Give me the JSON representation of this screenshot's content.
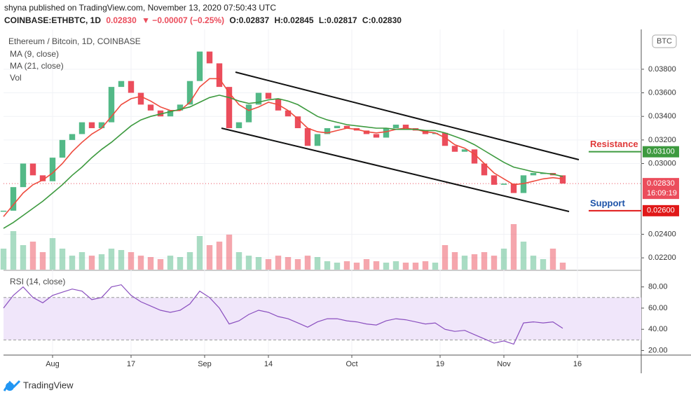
{
  "chart_data": {
    "type": "candlestick",
    "header": "shyna published on TradingView.com, November 13, 2020 07:50:43 UTC",
    "ticker": {
      "symbol": "COINBASE:ETHBTC, 1D",
      "last": "0.02830",
      "change": "▼ −0.00007 (−0.25%)",
      "open": "O:0.02837",
      "high": "H:0.02845",
      "low": "L:0.02817",
      "close": "C:0.02830"
    },
    "currency": "BTC",
    "brand": "TradingView",
    "x": [
      "2020-07-22",
      "2020-07-24",
      "2020-07-26",
      "2020-07-28",
      "2020-07-30",
      "2020-08-01",
      "2020-08-03",
      "2020-08-05",
      "2020-08-07",
      "2020-08-09",
      "2020-08-11",
      "2020-08-13",
      "2020-08-15",
      "2020-08-17",
      "2020-08-19",
      "2020-08-21",
      "2020-08-23",
      "2020-08-25",
      "2020-08-27",
      "2020-08-29",
      "2020-08-31",
      "2020-09-02",
      "2020-09-04",
      "2020-09-06",
      "2020-09-08",
      "2020-09-10",
      "2020-09-12",
      "2020-09-14",
      "2020-09-16",
      "2020-09-18",
      "2020-09-20",
      "2020-09-22",
      "2020-09-24",
      "2020-09-26",
      "2020-09-28",
      "2020-09-30",
      "2020-10-02",
      "2020-10-04",
      "2020-10-06",
      "2020-10-08",
      "2020-10-10",
      "2020-10-12",
      "2020-10-14",
      "2020-10-16",
      "2020-10-18",
      "2020-10-20",
      "2020-10-22",
      "2020-10-24",
      "2020-10-26",
      "2020-10-28",
      "2020-10-30",
      "2020-11-01",
      "2020-11-03",
      "2020-11-05",
      "2020-11-07",
      "2020-11-09",
      "2020-11-11",
      "2020-11-13"
    ],
    "xlim": [
      "2020-07-22",
      "2020-11-29"
    ],
    "xticks": [
      {
        "value": "2020-08-01",
        "label": "Aug"
      },
      {
        "value": "2020-08-17",
        "label": "17"
      },
      {
        "value": "2020-09-01",
        "label": "Sep"
      },
      {
        "value": "2020-09-14",
        "label": "14"
      },
      {
        "value": "2020-10-01",
        "label": "Oct"
      },
      {
        "value": "2020-10-19",
        "label": "19"
      },
      {
        "value": "2020-11-01",
        "label": "Nov"
      },
      {
        "value": "2020-11-16",
        "label": "16"
      }
    ],
    "ylim": [
      0.021,
      0.0412
    ],
    "yticks": [
      {
        "value": 0.038,
        "label": "0.03800"
      },
      {
        "value": 0.036,
        "label": "0.03600"
      },
      {
        "value": 0.034,
        "label": "0.03400"
      },
      {
        "value": 0.032,
        "label": "0.03200"
      },
      {
        "value": 0.03,
        "label": "0.03000"
      },
      {
        "value": 0.024,
        "label": "0.02400"
      },
      {
        "value": 0.022,
        "label": "0.02200"
      }
    ],
    "up_color": "#53b987",
    "down_color": "#eb4d5c",
    "series": [
      {
        "name": "Ethereum / Bitcoin, 1D, COINBASE",
        "values": [
          0.026,
          0.028,
          0.03,
          0.029,
          0.0285,
          0.0305,
          0.032,
          0.0325,
          0.0335,
          0.033,
          0.0335,
          0.0365,
          0.037,
          0.036,
          0.035,
          0.0345,
          0.034,
          0.0345,
          0.035,
          0.037,
          0.0395,
          0.0385,
          0.0365,
          0.033,
          0.0335,
          0.035,
          0.036,
          0.0355,
          0.0345,
          0.034,
          0.033,
          0.0315,
          0.0325,
          0.033,
          0.0332,
          0.033,
          0.0328,
          0.0325,
          0.0322,
          0.033,
          0.0333,
          0.033,
          0.0328,
          0.0325,
          0.0326,
          0.0315,
          0.031,
          0.0312,
          0.03,
          0.029,
          0.0282,
          0.0283,
          0.0275,
          0.029,
          0.0292,
          0.0292,
          0.029,
          0.0283
        ]
      },
      {
        "name": "MA (9, close)",
        "color": "#ee4b3e",
        "values": [
          0.0255,
          0.0265,
          0.0275,
          0.0282,
          0.0286,
          0.0292,
          0.03,
          0.031,
          0.0318,
          0.0325,
          0.033,
          0.034,
          0.035,
          0.0355,
          0.0357,
          0.0353,
          0.0348,
          0.0345,
          0.0345,
          0.0352,
          0.0365,
          0.0372,
          0.0372,
          0.036,
          0.035,
          0.0345,
          0.0348,
          0.0352,
          0.035,
          0.0345,
          0.0338,
          0.033,
          0.0327,
          0.0326,
          0.0328,
          0.033,
          0.0329,
          0.0327,
          0.0326,
          0.0327,
          0.0329,
          0.033,
          0.0329,
          0.0327,
          0.0326,
          0.0322,
          0.0316,
          0.0313,
          0.0308,
          0.03,
          0.0292,
          0.0287,
          0.0282,
          0.0283,
          0.0285,
          0.0287,
          0.0288,
          0.0287
        ]
      },
      {
        "name": "MA (21, close)",
        "color": "#3d9a3f",
        "values": [
          0.0245,
          0.025,
          0.0256,
          0.0262,
          0.0268,
          0.0275,
          0.0282,
          0.029,
          0.0297,
          0.0305,
          0.0312,
          0.0318,
          0.0325,
          0.0332,
          0.0337,
          0.034,
          0.0342,
          0.0344,
          0.0346,
          0.0348,
          0.0352,
          0.0356,
          0.0358,
          0.0356,
          0.0353,
          0.0351,
          0.0352,
          0.0354,
          0.0355,
          0.0353,
          0.035,
          0.0345,
          0.034,
          0.0337,
          0.0335,
          0.0333,
          0.0332,
          0.0331,
          0.033,
          0.033,
          0.0329,
          0.0329,
          0.0329,
          0.0328,
          0.0328,
          0.0326,
          0.0323,
          0.032,
          0.0316,
          0.0311,
          0.0306,
          0.0301,
          0.0297,
          0.0295,
          0.0293,
          0.0292,
          0.0291,
          0.0289
        ]
      }
    ],
    "volume": {
      "name": "Vol",
      "values": [
        30,
        55,
        35,
        40,
        25,
        45,
        30,
        20,
        25,
        20,
        22,
        30,
        28,
        25,
        20,
        18,
        15,
        20,
        18,
        25,
        48,
        35,
        40,
        50,
        25,
        20,
        18,
        15,
        20,
        18,
        15,
        20,
        18,
        12,
        10,
        12,
        10,
        15,
        12,
        10,
        12,
        10,
        10,
        12,
        10,
        35,
        25,
        20,
        22,
        25,
        20,
        30,
        65,
        40,
        20,
        15,
        30,
        10
      ]
    },
    "last_price": {
      "value": 0.0283,
      "label": "0.02830",
      "time": "16:09:19",
      "color": "#eb4d5c"
    },
    "levels": [
      {
        "text": "Resistance",
        "value": 0.031,
        "label": "0.03100",
        "color": "#3d9a3f",
        "text_color": "#e03a3a"
      },
      {
        "text": "Support",
        "value": 0.026,
        "label": "0.02600",
        "color": "#e01818",
        "text_color": "#1e53a8"
      }
    ],
    "rsi": {
      "name": "RSI (14, close)",
      "color": "#8a4fbf",
      "ylim": [
        17,
        93
      ],
      "band": [
        30,
        70
      ],
      "yticks": [
        {
          "value": 80,
          "label": "80.00"
        },
        {
          "value": 60,
          "label": "60.00"
        },
        {
          "value": 40,
          "label": "40.00"
        },
        {
          "value": 20,
          "label": "20.00"
        }
      ],
      "values": [
        60,
        72,
        80,
        70,
        65,
        72,
        75,
        78,
        76,
        68,
        70,
        80,
        82,
        72,
        66,
        62,
        58,
        56,
        58,
        64,
        76,
        70,
        60,
        45,
        48,
        54,
        58,
        56,
        52,
        50,
        46,
        42,
        47,
        50,
        50,
        48,
        47,
        45,
        44,
        48,
        50,
        49,
        47,
        45,
        46,
        40,
        38,
        39,
        35,
        31,
        27,
        29,
        26,
        46,
        47,
        46,
        47,
        41
      ]
    }
  }
}
